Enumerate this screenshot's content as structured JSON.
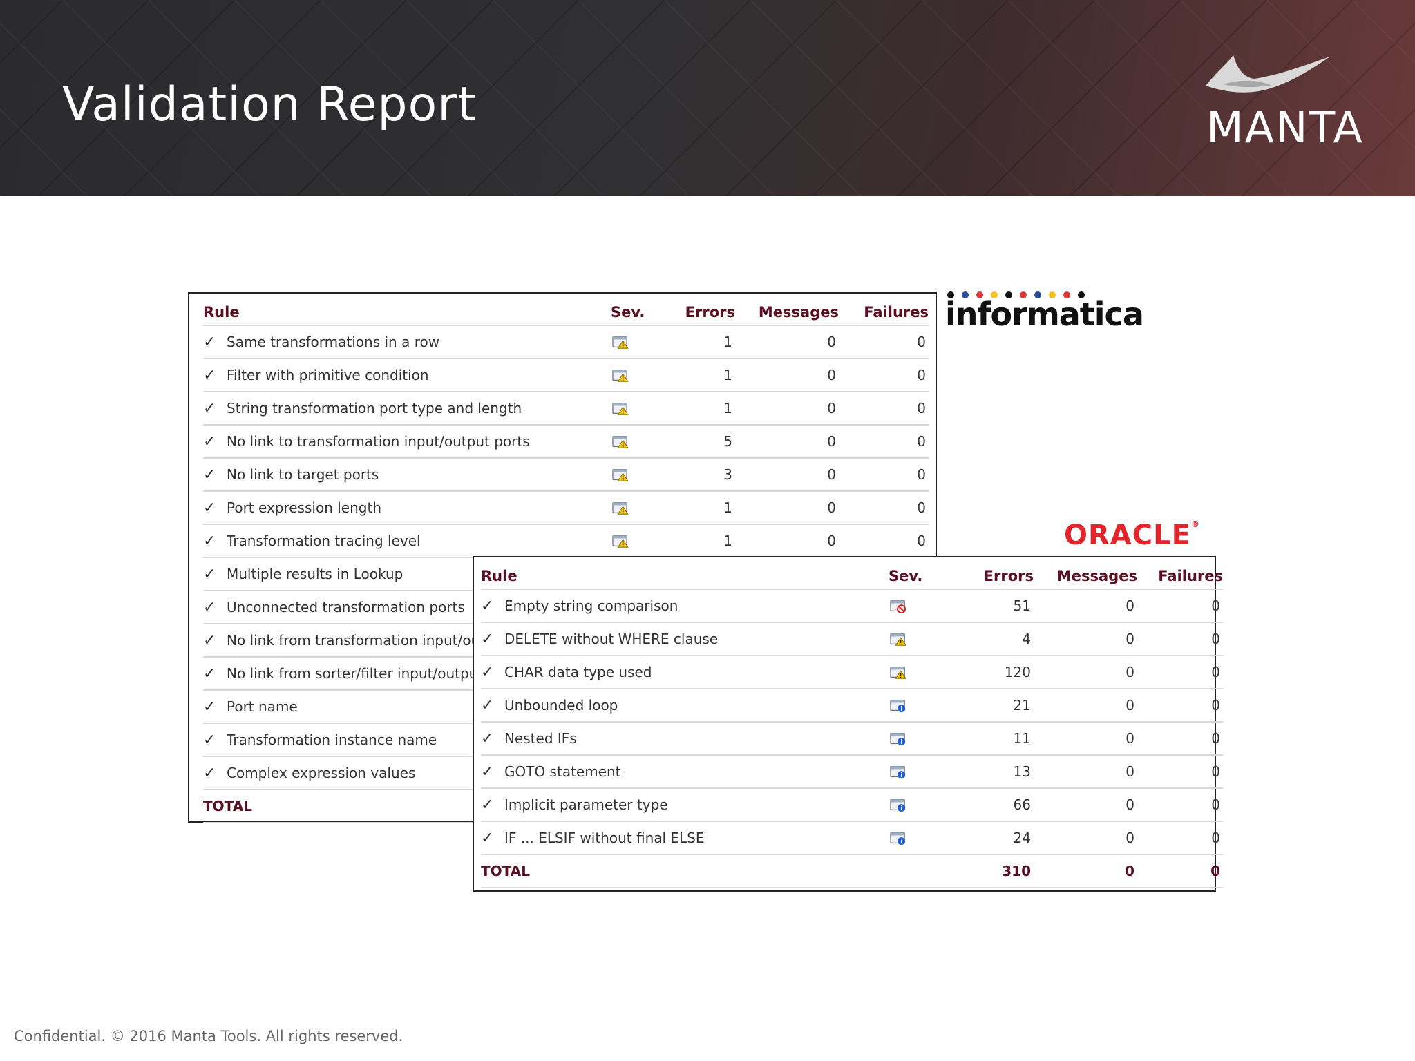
{
  "slide": {
    "title": "Validation Report",
    "brand": "MANTA",
    "footer": "Confidential. © 2016 Manta Tools. All rights reserved."
  },
  "logos": {
    "informatica": "informatica",
    "oracle": "ORACLE",
    "oracle_mark": "®",
    "informatica_dot_colors": [
      "#111111",
      "#2a4d9c",
      "#e03a3a",
      "#f3c21b",
      "#111111",
      "#e03a3a",
      "#2a4d9c",
      "#f3c21b",
      "#e03a3a",
      "#111111"
    ]
  },
  "colors": {
    "header_text": "#5a1020",
    "oracle_red": "#e3242b",
    "warning": "#f2c200",
    "error": "#e02020",
    "info": "#1f5fd8"
  },
  "columns": {
    "rule": "Rule",
    "sev": "Sev.",
    "errors": "Errors",
    "messages": "Messages",
    "failures": "Failures"
  },
  "informatica_table": {
    "rows": [
      {
        "rule": "Same transformations in a row",
        "severity": "warning",
        "errors": "1",
        "messages": "0",
        "failures": "0"
      },
      {
        "rule": "Filter with primitive condition",
        "severity": "warning",
        "errors": "1",
        "messages": "0",
        "failures": "0"
      },
      {
        "rule": "String transformation port type and length",
        "severity": "warning",
        "errors": "1",
        "messages": "0",
        "failures": "0"
      },
      {
        "rule": "No link to transformation input/output ports",
        "severity": "warning",
        "errors": "5",
        "messages": "0",
        "failures": "0"
      },
      {
        "rule": "No link to target ports",
        "severity": "warning",
        "errors": "3",
        "messages": "0",
        "failures": "0"
      },
      {
        "rule": "Port expression length",
        "severity": "warning",
        "errors": "1",
        "messages": "0",
        "failures": "0"
      },
      {
        "rule": "Transformation tracing level",
        "severity": "warning",
        "errors": "1",
        "messages": "0",
        "failures": "0"
      },
      {
        "rule": "Multiple results in Lookup"
      },
      {
        "rule": "Unconnected transformation ports"
      },
      {
        "rule": "No link from transformation input/outpu"
      },
      {
        "rule": "No link from sorter/filter input/output po"
      },
      {
        "rule": "Port name"
      },
      {
        "rule": "Transformation instance name"
      },
      {
        "rule": "Complex expression values"
      }
    ],
    "total_label": "TOTAL"
  },
  "oracle_table": {
    "rows": [
      {
        "rule": "Empty string comparison",
        "severity": "error",
        "errors": "51",
        "messages": "0",
        "failures": "0"
      },
      {
        "rule": "DELETE without WHERE clause",
        "severity": "warning",
        "errors": "4",
        "messages": "0",
        "failures": "0"
      },
      {
        "rule": "CHAR data type used",
        "severity": "warning",
        "errors": "120",
        "messages": "0",
        "failures": "0"
      },
      {
        "rule": "Unbounded loop",
        "severity": "info",
        "errors": "21",
        "messages": "0",
        "failures": "0"
      },
      {
        "rule": "Nested IFs",
        "severity": "info",
        "errors": "11",
        "messages": "0",
        "failures": "0"
      },
      {
        "rule": "GOTO statement",
        "severity": "info",
        "errors": "13",
        "messages": "0",
        "failures": "0"
      },
      {
        "rule": "Implicit parameter type",
        "severity": "info",
        "errors": "66",
        "messages": "0",
        "failures": "0"
      },
      {
        "rule": "IF ... ELSIF without final ELSE",
        "severity": "info",
        "errors": "24",
        "messages": "0",
        "failures": "0"
      }
    ],
    "total": {
      "label": "TOTAL",
      "errors": "310",
      "messages": "0",
      "failures": "0"
    }
  }
}
